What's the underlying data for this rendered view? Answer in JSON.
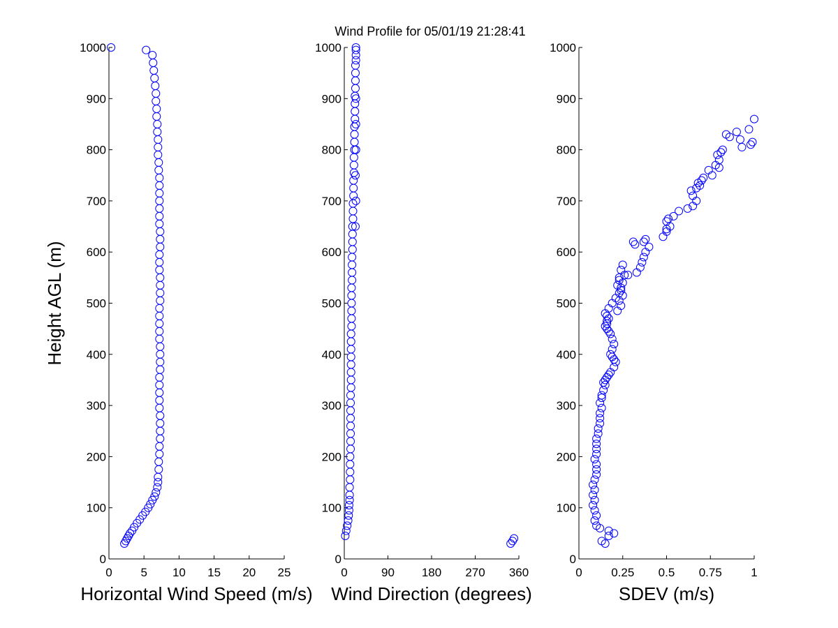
{
  "title": "Wind Profile for  05/01/19 21:28:41",
  "colors": {
    "marker": "#0000ff",
    "axis": "#000000",
    "background": "#ffffff"
  },
  "chart_data": [
    {
      "type": "scatter",
      "name": "speed",
      "xlabel": "Horizontal Wind Speed (m/s)",
      "ylabel": "Height AGL (m)",
      "xlim": [
        0,
        25
      ],
      "ylim": [
        0,
        1000
      ],
      "xticks": [
        0,
        5,
        10,
        15,
        20,
        25
      ],
      "xtick_labels": [
        "0",
        "5",
        "10",
        "15",
        "20",
        "25"
      ],
      "yticks": [
        0,
        100,
        200,
        300,
        400,
        500,
        600,
        700,
        800,
        900,
        1000
      ],
      "ytick_labels": [
        "0",
        "100",
        "200",
        "300",
        "400",
        "500",
        "600",
        "700",
        "800",
        "900",
        "1000"
      ],
      "grid": false,
      "x": [
        2.2,
        2.4,
        2.6,
        2.8,
        3.0,
        3.3,
        3.6,
        4.0,
        4.4,
        4.8,
        5.2,
        5.6,
        5.9,
        6.2,
        6.5,
        6.7,
        6.9,
        7.0,
        7.0,
        7.1,
        7.1,
        7.2,
        7.2,
        7.3,
        7.3,
        7.3,
        7.3,
        7.2,
        7.2,
        7.2,
        7.2,
        7.2,
        7.3,
        7.3,
        7.3,
        7.3,
        7.2,
        7.2,
        7.2,
        7.2,
        7.2,
        7.3,
        7.3,
        7.3,
        7.3,
        7.2,
        7.2,
        7.2,
        7.3,
        7.3,
        7.3,
        7.2,
        7.2,
        7.2,
        7.2,
        7.2,
        7.2,
        7.2,
        7.1,
        7.1,
        7.0,
        7.0,
        7.0,
        6.9,
        6.9,
        6.8,
        6.8,
        6.7,
        6.7,
        6.6,
        6.5,
        6.4,
        6.3,
        6.2,
        5.3,
        0.3
      ],
      "y": [
        30,
        35,
        40,
        45,
        50,
        55,
        62,
        70,
        77,
        85,
        92,
        100,
        107,
        115,
        122,
        130,
        140,
        150,
        160,
        175,
        190,
        205,
        220,
        235,
        250,
        265,
        280,
        295,
        310,
        325,
        340,
        355,
        370,
        385,
        400,
        415,
        430,
        445,
        460,
        475,
        490,
        505,
        520,
        535,
        550,
        565,
        580,
        595,
        610,
        625,
        640,
        655,
        670,
        685,
        700,
        715,
        730,
        745,
        760,
        775,
        790,
        805,
        820,
        835,
        850,
        865,
        880,
        895,
        910,
        925,
        940,
        955,
        970,
        985,
        995,
        1000
      ]
    },
    {
      "type": "scatter",
      "name": "direction",
      "xlabel": "Wind Direction (degrees)",
      "ylabel": "",
      "xlim": [
        0,
        360
      ],
      "ylim": [
        0,
        1000
      ],
      "xticks": [
        0,
        90,
        180,
        270,
        360
      ],
      "xtick_labels": [
        "0",
        "90",
        "180",
        "270",
        "360"
      ],
      "yticks": [
        0,
        100,
        200,
        300,
        400,
        500,
        600,
        700,
        800,
        900,
        1000
      ],
      "ytick_labels": [
        "0",
        "100",
        "200",
        "300",
        "400",
        "500",
        "600",
        "700",
        "800",
        "900",
        "1000"
      ],
      "grid": false,
      "x": [
        350,
        347,
        343,
        2,
        4,
        6,
        8,
        9,
        10,
        10,
        11,
        11,
        11,
        12,
        12,
        12,
        12,
        13,
        13,
        13,
        13,
        13,
        13,
        13,
        13,
        14,
        14,
        14,
        14,
        14,
        14,
        14,
        14,
        15,
        15,
        15,
        15,
        15,
        15,
        16,
        16,
        16,
        16,
        17,
        17,
        17,
        17,
        18,
        18,
        18,
        19,
        19,
        19,
        20,
        20,
        20,
        21,
        21,
        21,
        21,
        22,
        22,
        22,
        22,
        23,
        23,
        23,
        23,
        24,
        24,
        24,
        24,
        24,
        24,
        24,
        23,
        24,
        23
      ],
      "y": [
        40,
        35,
        30,
        45,
        55,
        65,
        75,
        85,
        95,
        105,
        115,
        125,
        140,
        155,
        170,
        185,
        200,
        215,
        230,
        245,
        260,
        275,
        290,
        305,
        320,
        335,
        350,
        365,
        380,
        395,
        410,
        425,
        440,
        455,
        470,
        485,
        500,
        515,
        530,
        545,
        560,
        575,
        590,
        605,
        620,
        635,
        650,
        665,
        680,
        695,
        710,
        725,
        740,
        755,
        770,
        785,
        800,
        815,
        830,
        845,
        860,
        875,
        890,
        905,
        920,
        935,
        950,
        965,
        975,
        985,
        995,
        1000,
        900,
        850,
        800,
        750,
        700,
        650
      ]
    },
    {
      "type": "scatter",
      "name": "sdev",
      "xlabel": "SDEV  (m/s)",
      "ylabel": "",
      "xlim": [
        0,
        1
      ],
      "ylim": [
        0,
        1000
      ],
      "xticks": [
        0,
        0.25,
        0.5,
        0.75,
        1
      ],
      "xtick_labels": [
        "0",
        "0.25",
        "0.5",
        "0.75",
        "1"
      ],
      "yticks": [
        0,
        100,
        200,
        300,
        400,
        500,
        600,
        700,
        800,
        900,
        1000
      ],
      "ytick_labels": [
        "0",
        "100",
        "200",
        "300",
        "400",
        "500",
        "600",
        "700",
        "800",
        "900",
        "1000"
      ],
      "grid": false,
      "x": [
        0.15,
        0.13,
        0.17,
        0.2,
        0.17,
        0.12,
        0.1,
        0.09,
        0.1,
        0.09,
        0.08,
        0.09,
        0.08,
        0.09,
        0.08,
        0.09,
        0.1,
        0.1,
        0.1,
        0.09,
        0.1,
        0.1,
        0.1,
        0.1,
        0.11,
        0.11,
        0.12,
        0.12,
        0.12,
        0.13,
        0.12,
        0.13,
        0.13,
        0.14,
        0.15,
        0.14,
        0.15,
        0.16,
        0.17,
        0.18,
        0.2,
        0.21,
        0.2,
        0.19,
        0.18,
        0.19,
        0.2,
        0.19,
        0.18,
        0.17,
        0.16,
        0.15,
        0.16,
        0.16,
        0.17,
        0.16,
        0.15,
        0.17,
        0.19,
        0.21,
        0.23,
        0.24,
        0.25,
        0.23,
        0.22,
        0.24,
        0.23,
        0.25,
        0.24,
        0.22,
        0.23,
        0.26,
        0.24,
        0.25,
        0.28,
        0.33,
        0.35,
        0.36,
        0.37,
        0.38,
        0.4,
        0.37,
        0.32,
        0.31,
        0.38,
        0.48,
        0.5,
        0.52,
        0.5,
        0.51,
        0.54,
        0.57,
        0.5,
        0.62,
        0.65,
        0.67,
        0.64,
        0.65,
        0.67,
        0.69,
        0.68,
        0.7,
        0.71,
        0.76,
        0.74,
        0.78,
        0.8,
        0.79,
        0.82,
        0.81,
        0.8,
        0.84,
        0.86,
        0.9,
        0.92,
        0.93,
        0.97,
        0.98,
        0.99,
        1.0
      ],
      "y": [
        30,
        35,
        55,
        50,
        45,
        60,
        65,
        75,
        85,
        95,
        105,
        115,
        125,
        135,
        145,
        155,
        165,
        175,
        185,
        195,
        205,
        215,
        225,
        235,
        245,
        255,
        265,
        275,
        285,
        295,
        305,
        315,
        320,
        330,
        340,
        345,
        350,
        355,
        360,
        365,
        375,
        385,
        390,
        395,
        400,
        410,
        420,
        430,
        440,
        445,
        450,
        455,
        460,
        465,
        470,
        475,
        480,
        490,
        500,
        510,
        520,
        530,
        540,
        550,
        485,
        495,
        505,
        515,
        525,
        535,
        545,
        555,
        565,
        575,
        555,
        560,
        570,
        580,
        590,
        600,
        610,
        620,
        615,
        620,
        625,
        630,
        640,
        650,
        660,
        665,
        670,
        680,
        645,
        685,
        690,
        700,
        720,
        710,
        725,
        730,
        735,
        740,
        745,
        750,
        760,
        770,
        780,
        790,
        800,
        795,
        765,
        830,
        825,
        835,
        820,
        805,
        840,
        810,
        815,
        860
      ]
    }
  ]
}
